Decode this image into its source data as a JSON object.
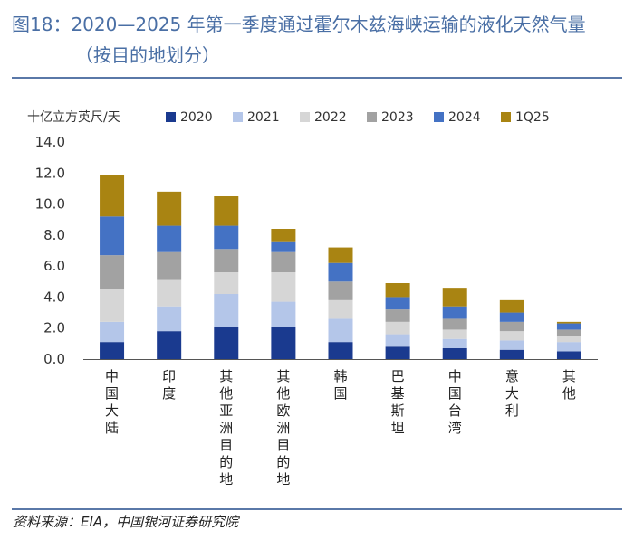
{
  "title": {
    "line1": "图18：2020—2025 年第一季度通过霍尔木兹海峡运输的液化天然气量",
    "line2": "（按目的地划分）"
  },
  "source": "资料来源：EIA，中国银河证券研究院",
  "chart_data": {
    "type": "bar",
    "stacked": true,
    "ylabel": "十亿立方英尺/天",
    "ylim": [
      0,
      14
    ],
    "yticks": [
      "0.0",
      "2.0",
      "4.0",
      "6.0",
      "8.0",
      "10.0",
      "12.0",
      "14.0"
    ],
    "categories": [
      "中国大陆",
      "印度",
      "其他亚洲目的地",
      "其他欧洲目的地",
      "韩国",
      "巴基斯坦",
      "中国台湾",
      "意大利",
      "其他"
    ],
    "series": [
      {
        "name": "2020",
        "color": "#1a3a8f",
        "values": [
          1.1,
          1.8,
          2.1,
          2.1,
          1.1,
          0.8,
          0.7,
          0.6,
          0.5
        ]
      },
      {
        "name": "2021",
        "color": "#b4c6e9",
        "values": [
          1.3,
          1.6,
          2.1,
          1.6,
          1.5,
          0.8,
          0.6,
          0.6,
          0.6
        ]
      },
      {
        "name": "2022",
        "color": "#d6d6d6",
        "values": [
          2.1,
          1.7,
          1.4,
          1.9,
          1.2,
          0.8,
          0.6,
          0.6,
          0.4
        ]
      },
      {
        "name": "2023",
        "color": "#a2a2a2",
        "values": [
          2.2,
          1.8,
          1.5,
          1.3,
          1.2,
          0.8,
          0.7,
          0.6,
          0.4
        ]
      },
      {
        "name": "2024",
        "color": "#4472c4",
        "values": [
          2.5,
          1.7,
          1.5,
          0.7,
          1.2,
          0.8,
          0.8,
          0.6,
          0.4
        ]
      },
      {
        "name": "1Q25",
        "color": "#a98412",
        "values": [
          2.7,
          2.2,
          1.9,
          0.8,
          1.0,
          0.9,
          1.2,
          0.8,
          0.1
        ]
      }
    ]
  }
}
